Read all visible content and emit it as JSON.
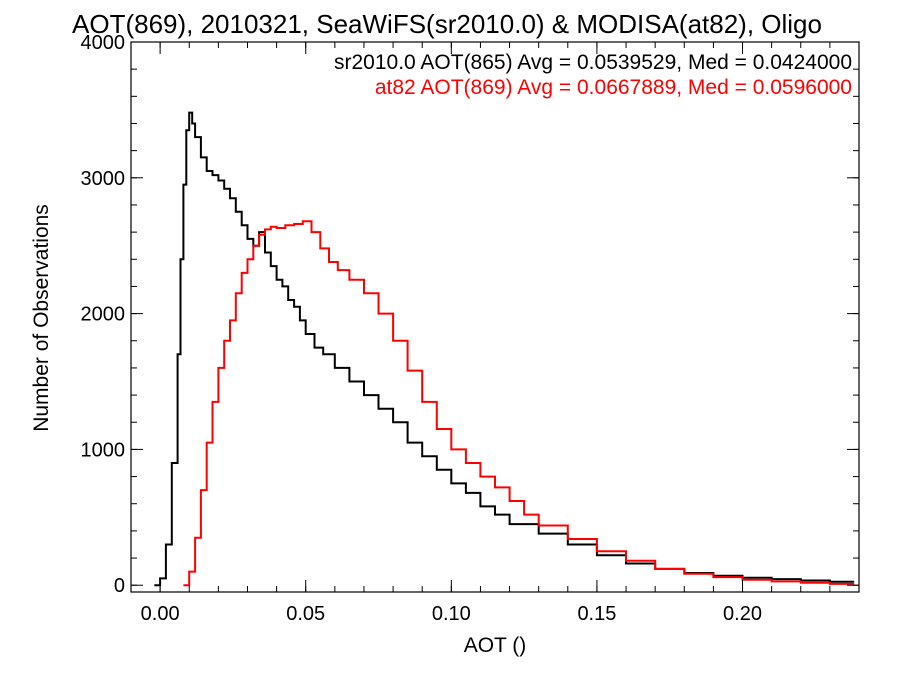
{
  "chart_data": {
    "type": "line",
    "title": "AOT(869), 2010321, SeaWiFS(sr2010.0) & MODISA(at82), Oligo",
    "xlabel": "AOT ()",
    "ylabel": "Number of Observations",
    "xlim": [
      -0.01,
      0.24
    ],
    "ylim": [
      -50,
      4000
    ],
    "xticks": [
      0.0,
      0.05,
      0.1,
      0.15,
      0.2
    ],
    "xtick_labels": [
      "0.00",
      "0.05",
      "0.10",
      "0.15",
      "0.20"
    ],
    "yticks": [
      0,
      1000,
      2000,
      3000,
      4000
    ],
    "ytick_labels": [
      "0",
      "1000",
      "2000",
      "3000",
      "4000"
    ],
    "grid": false,
    "legend_position": "top-right",
    "series": [
      {
        "label": "sr2010.0 AOT(865) Avg = 0.0539529, Med = 0.0424000",
        "color": "#000000",
        "step": true,
        "x": [
          -0.002,
          0.0,
          0.002,
          0.004,
          0.006,
          0.007,
          0.008,
          0.009,
          0.01,
          0.011,
          0.012,
          0.014,
          0.016,
          0.018,
          0.02,
          0.022,
          0.024,
          0.026,
          0.028,
          0.03,
          0.032,
          0.034,
          0.036,
          0.038,
          0.04,
          0.042,
          0.044,
          0.046,
          0.048,
          0.05,
          0.053,
          0.056,
          0.06,
          0.065,
          0.07,
          0.075,
          0.08,
          0.085,
          0.09,
          0.095,
          0.1,
          0.105,
          0.11,
          0.115,
          0.12,
          0.13,
          0.14,
          0.15,
          0.16,
          0.17,
          0.18,
          0.19,
          0.2,
          0.21,
          0.22,
          0.23,
          0.238
        ],
        "y": [
          0,
          50,
          300,
          900,
          1700,
          2400,
          2950,
          3350,
          3480,
          3400,
          3300,
          3150,
          3050,
          3020,
          2980,
          2920,
          2850,
          2750,
          2650,
          2550,
          2500,
          2600,
          2450,
          2350,
          2250,
          2200,
          2100,
          2050,
          1950,
          1850,
          1750,
          1700,
          1600,
          1500,
          1400,
          1300,
          1200,
          1050,
          950,
          850,
          750,
          680,
          580,
          520,
          450,
          380,
          300,
          220,
          160,
          120,
          90,
          70,
          55,
          45,
          35,
          25,
          20
        ]
      },
      {
        "label": "at82 AOT(869) Avg = 0.0667889, Med = 0.0596000",
        "color": "#ff0000",
        "step": true,
        "x": [
          0.008,
          0.01,
          0.012,
          0.014,
          0.016,
          0.018,
          0.02,
          0.022,
          0.024,
          0.026,
          0.028,
          0.03,
          0.032,
          0.034,
          0.036,
          0.038,
          0.04,
          0.043,
          0.046,
          0.049,
          0.052,
          0.055,
          0.058,
          0.061,
          0.065,
          0.07,
          0.075,
          0.08,
          0.085,
          0.09,
          0.095,
          0.1,
          0.105,
          0.11,
          0.115,
          0.12,
          0.125,
          0.13,
          0.14,
          0.15,
          0.16,
          0.17,
          0.18,
          0.19,
          0.2,
          0.21,
          0.22,
          0.23,
          0.238
        ],
        "y": [
          0,
          100,
          350,
          700,
          1050,
          1350,
          1600,
          1800,
          1950,
          2150,
          2300,
          2400,
          2500,
          2580,
          2620,
          2640,
          2630,
          2650,
          2660,
          2680,
          2600,
          2480,
          2380,
          2320,
          2250,
          2150,
          2000,
          1800,
          1580,
          1350,
          1150,
          1000,
          900,
          800,
          720,
          620,
          520,
          440,
          340,
          250,
          180,
          120,
          85,
          60,
          40,
          28,
          18,
          10,
          5
        ]
      }
    ]
  }
}
